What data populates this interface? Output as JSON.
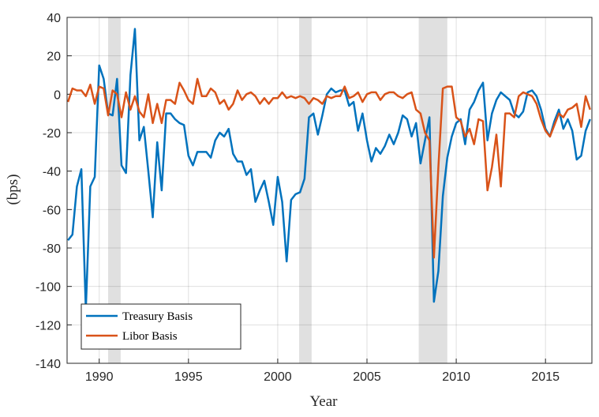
{
  "chart_data": {
    "type": "line",
    "xlabel": "Year",
    "ylabel": "(bps)",
    "x": [
      1988.25,
      1988.5,
      1988.75,
      1989,
      1989.25,
      1989.5,
      1989.75,
      1990,
      1990.25,
      1990.5,
      1990.75,
      1991,
      1991.25,
      1991.5,
      1991.75,
      1992,
      1992.25,
      1992.5,
      1992.75,
      1993,
      1993.25,
      1993.5,
      1993.75,
      1994,
      1994.25,
      1994.5,
      1994.75,
      1995,
      1995.25,
      1995.5,
      1995.75,
      1996,
      1996.25,
      1996.5,
      1996.75,
      1997,
      1997.25,
      1997.5,
      1997.75,
      1998,
      1998.25,
      1998.5,
      1998.75,
      1999,
      1999.25,
      1999.5,
      1999.75,
      2000,
      2000.25,
      2000.5,
      2000.75,
      2001,
      2001.25,
      2001.5,
      2001.75,
      2002,
      2002.25,
      2002.5,
      2002.75,
      2003,
      2003.25,
      2003.5,
      2003.75,
      2004,
      2004.25,
      2004.5,
      2004.75,
      2005,
      2005.25,
      2005.5,
      2005.75,
      2006,
      2006.25,
      2006.5,
      2006.75,
      2007,
      2007.25,
      2007.5,
      2007.75,
      2008,
      2008.25,
      2008.5,
      2008.75,
      2009,
      2009.25,
      2009.5,
      2009.75,
      2010,
      2010.25,
      2010.5,
      2010.75,
      2011,
      2011.25,
      2011.5,
      2011.75,
      2012,
      2012.25,
      2012.5,
      2012.75,
      2013,
      2013.25,
      2013.5,
      2013.75,
      2014,
      2014.25,
      2014.5,
      2014.75,
      2015,
      2015.25,
      2015.5,
      2015.75,
      2016,
      2016.25,
      2016.5,
      2016.75,
      2017,
      2017.25,
      2017.5
    ],
    "series": [
      {
        "name": "Treasury Basis",
        "color": "#0072bd",
        "values": [
          -76,
          -73,
          -48,
          -39,
          -112,
          -48,
          -43,
          15,
          8,
          -10,
          -11,
          8,
          -37,
          -41,
          10,
          34,
          -24,
          -17,
          -40,
          -64,
          -25,
          -50,
          -10,
          -10,
          -13,
          -15,
          -16,
          -32,
          -37,
          -30,
          -30,
          -30,
          -33,
          -24,
          -20,
          -22,
          -18,
          -31,
          -35,
          -35,
          -42,
          -39,
          -56,
          -50,
          -45,
          -56,
          -68,
          -43,
          -56,
          -87,
          -55,
          -52,
          -51,
          -44,
          -12,
          -10,
          -21,
          -11,
          0,
          3,
          1,
          2,
          2,
          -6,
          -4,
          -19,
          -10,
          -24,
          -35,
          -28,
          -31,
          -27,
          -21,
          -26,
          -20,
          -11,
          -13,
          -22,
          -15,
          -36,
          -24,
          -12,
          -108,
          -92,
          -53,
          -33,
          -22,
          -15,
          -13,
          -26,
          -8,
          -4,
          2,
          6,
          -24,
          -10,
          -3,
          1,
          -1,
          -3,
          -10,
          -12,
          -9,
          1,
          2,
          -1,
          -8,
          -18,
          -22,
          -14,
          -8,
          -18,
          -13,
          -19,
          -34,
          -32,
          -19,
          -13
        ]
      },
      {
        "name": "Libor Basis",
        "color": "#d95319",
        "values": [
          -4,
          3,
          2,
          2,
          -1,
          5,
          -5,
          4,
          3,
          -11,
          2,
          0,
          -12,
          1,
          -8,
          -1,
          -9,
          -12,
          0,
          -15,
          -5,
          -15,
          -3,
          -3,
          -5,
          6,
          2,
          -3,
          -5,
          8,
          -1,
          -1,
          3,
          1,
          -5,
          -3,
          -8,
          -5,
          2,
          -3,
          0,
          1,
          -1,
          -5,
          -2,
          -5,
          -2,
          -2,
          1,
          -2,
          -1,
          -2,
          -1,
          -2,
          -5,
          -2,
          -3,
          -5,
          -1,
          -2,
          -1,
          -1,
          4,
          -2,
          -1,
          1,
          -4,
          0,
          1,
          1,
          -3,
          0,
          1,
          1,
          -1,
          -2,
          0,
          1,
          -8,
          -10,
          -20,
          -24,
          -85,
          -38,
          3,
          4,
          4,
          -12,
          -14,
          -22,
          -18,
          -26,
          -13,
          -14,
          -50,
          -38,
          -21,
          -48,
          -10,
          -10,
          -12,
          -1,
          1,
          0,
          -1,
          -5,
          -13,
          -19,
          -22,
          -16,
          -10,
          -12,
          -8,
          -7,
          -5,
          -17,
          -1,
          -8
        ]
      }
    ],
    "shaded_regions": [
      [
        1990.5,
        1991.2
      ],
      [
        2001.2,
        2001.9
      ],
      [
        2007.9,
        2009.5
      ]
    ],
    "shade_color": "#e0e0e0",
    "xlim": [
      1988.2,
      2017.6
    ],
    "xticks": [
      1990,
      1995,
      2000,
      2005,
      2010,
      2015
    ],
    "ylim": [
      -140,
      40
    ],
    "yticks": [
      -140,
      -120,
      -100,
      -80,
      -60,
      -40,
      -20,
      0,
      20,
      40
    ],
    "grid": true,
    "legend_position": "lower left"
  }
}
